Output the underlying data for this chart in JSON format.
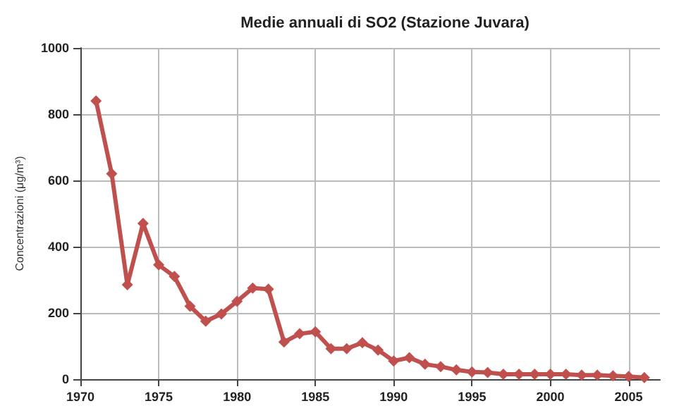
{
  "chart_data": {
    "type": "line",
    "title": "Medie annuali di SO2 (Stazione Juvara)",
    "ylabel": "Concentrazioni (μg/m³)",
    "x": [
      1971,
      1972,
      1973,
      1974,
      1975,
      1976,
      1977,
      1978,
      1979,
      1980,
      1981,
      1982,
      1983,
      1984,
      1985,
      1986,
      1987,
      1988,
      1989,
      1990,
      1991,
      1992,
      1993,
      1994,
      1995,
      1996,
      1997,
      1998,
      1999,
      2000,
      2001,
      2002,
      2003,
      2004,
      2005,
      2006
    ],
    "series": [
      {
        "color": "#c0504d",
        "values": [
          840,
          620,
          285,
          470,
          345,
          310,
          220,
          175,
          197,
          235,
          275,
          272,
          112,
          137,
          143,
          92,
          92,
          110,
          88,
          55,
          65,
          45,
          38,
          28,
          22,
          20,
          15,
          15,
          15,
          15,
          15,
          12,
          12,
          10,
          8,
          5
        ]
      }
    ],
    "xlim": [
      1970,
      2007
    ],
    "xticks": [
      1970,
      1975,
      1980,
      1985,
      1990,
      1995,
      2000,
      2005
    ],
    "ylim": [
      0,
      1000
    ],
    "yticks": [
      0,
      200,
      400,
      600,
      800,
      1000
    ],
    "grid": true,
    "marker": "diamond",
    "line_style": "solid"
  }
}
